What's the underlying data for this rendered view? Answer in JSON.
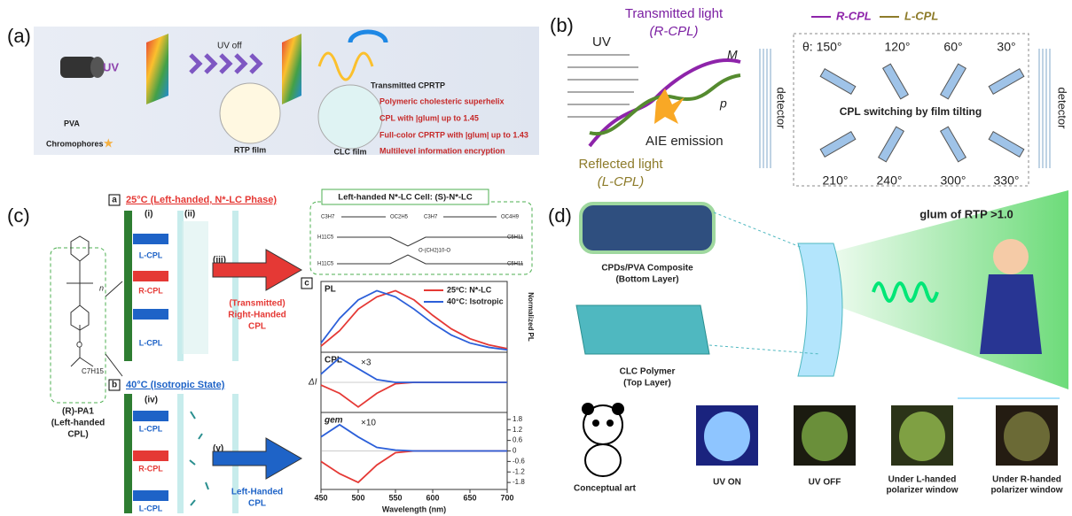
{
  "panel_a": {
    "label": "(a)",
    "uv": "UV",
    "uv_off": "UV off",
    "pva": "PVA",
    "chromophores": "Chromophores",
    "rtp_film": "RTP film",
    "clc_film": "CLC film",
    "transmitted": "Transmitted CPRTP",
    "bullets": [
      "Polymeric cholesteric superhelix",
      "CPL with |glum| up to 1.45",
      "Full-color CPRTP with |glum| up to 1.43",
      "Multilevel information encryption"
    ]
  },
  "panel_b": {
    "label": "(b)",
    "transmitted": "Transmitted light",
    "transmitted_sub": "(R-CPL)",
    "uv": "UV",
    "m": "M",
    "p": "p",
    "aie": "AIE emission",
    "reflected": "Reflected light",
    "reflected_sub": "(L-CPL)",
    "detector": "detector",
    "legend": [
      "R-CPL",
      "L-CPL"
    ],
    "angles_top": [
      "θ: 150°",
      "120°",
      "60°",
      "30°"
    ],
    "switching": "CPL switching by film tilting",
    "angles_bottom": [
      "210°",
      "240°",
      "300°",
      "330°"
    ]
  },
  "panel_c": {
    "label": "(c)",
    "sub_a": "a",
    "state_a": "25°C (Left-handed, N*-LC Phase)",
    "roman": [
      "(i)",
      "(ii)",
      "(iii)",
      "(iv)",
      "(v)"
    ],
    "cpl": [
      "L-CPL",
      "R-CPL",
      "L-CPL"
    ],
    "transmitted": [
      "(Transmitted)",
      "Right-Handed",
      "CPL"
    ],
    "cell": "Left-handed N*-LC Cell: (S)-N*-LC",
    "chem": [
      "C3H7",
      "OC2H5",
      "C3H7",
      "OC4H9",
      "H11C5",
      "C5H11",
      "H11C5",
      "C5H11",
      "O-(CH2)10-O"
    ],
    "polymer_parts": [
      "n",
      "O",
      "C7H15"
    ],
    "polymer": [
      "(R)-PA1",
      "(Left-handed",
      "CPL)"
    ],
    "sub_b": "b",
    "state_b": "40°C (Isotropic State)",
    "left_handed": [
      "Left-Handed",
      "CPL"
    ],
    "sub_c": "c",
    "plot": {
      "type": "line",
      "x": [
        450,
        475,
        500,
        525,
        550,
        575,
        600,
        625,
        650,
        675,
        700
      ],
      "xlim": [
        450,
        700
      ],
      "xticks": [
        450,
        500,
        550,
        600,
        650,
        700
      ],
      "xlabel": "Wavelength (nm)",
      "legend": [
        "25ºC: N*-LC",
        "40°C: Isotropic"
      ],
      "colors": [
        "#e53935",
        "#2b5fd9"
      ],
      "right_label": "Normalized PL",
      "subplots": [
        {
          "label": "PL",
          "ylim": [
            0,
            1.15
          ],
          "values": [
            [
              0.1,
              0.35,
              0.7,
              0.9,
              1.0,
              0.85,
              0.6,
              0.38,
              0.22,
              0.12,
              0.06
            ],
            [
              0.15,
              0.55,
              0.85,
              1.0,
              0.9,
              0.7,
              0.47,
              0.28,
              0.15,
              0.08,
              0.04
            ]
          ]
        },
        {
          "label": "CPL",
          "factor": "×3",
          "ylabel": "ΔI",
          "ylim": [
            -1.1,
            1.1
          ],
          "values": [
            [
              -0.1,
              -0.4,
              -0.9,
              -0.4,
              -0.05,
              0,
              0,
              0,
              0,
              0,
              0
            ],
            [
              0.3,
              0.9,
              0.5,
              0.1,
              0,
              0,
              0,
              0,
              0,
              0,
              0
            ]
          ]
        },
        {
          "label": "gem",
          "factor": "×10",
          "ylim": [
            -2.2,
            2.2
          ],
          "yticks": [
            1.8,
            1.2,
            0.6,
            0,
            -0.6,
            -1.2,
            -1.8
          ],
          "values": [
            [
              -0.6,
              -1.3,
              -1.8,
              -0.8,
              -0.1,
              0,
              0,
              0,
              0,
              0,
              0
            ],
            [
              0.8,
              1.5,
              0.8,
              0.2,
              0.05,
              0,
              0,
              0,
              0,
              0,
              0
            ]
          ]
        }
      ]
    }
  },
  "panel_d": {
    "label": "(d)",
    "glum": "glum of RTP >1.0",
    "bottom": [
      "CPDs/PVA Composite",
      "(Bottom Layer)"
    ],
    "top": [
      "CLC Polymer",
      "(Top Layer)"
    ],
    "captions": [
      [
        "Conceptual art"
      ],
      [
        "UV ON"
      ],
      [
        "UV OFF"
      ],
      [
        "Under L-handed",
        "polarizer window"
      ],
      [
        "Under R-handed",
        "polarizer window"
      ]
    ]
  }
}
